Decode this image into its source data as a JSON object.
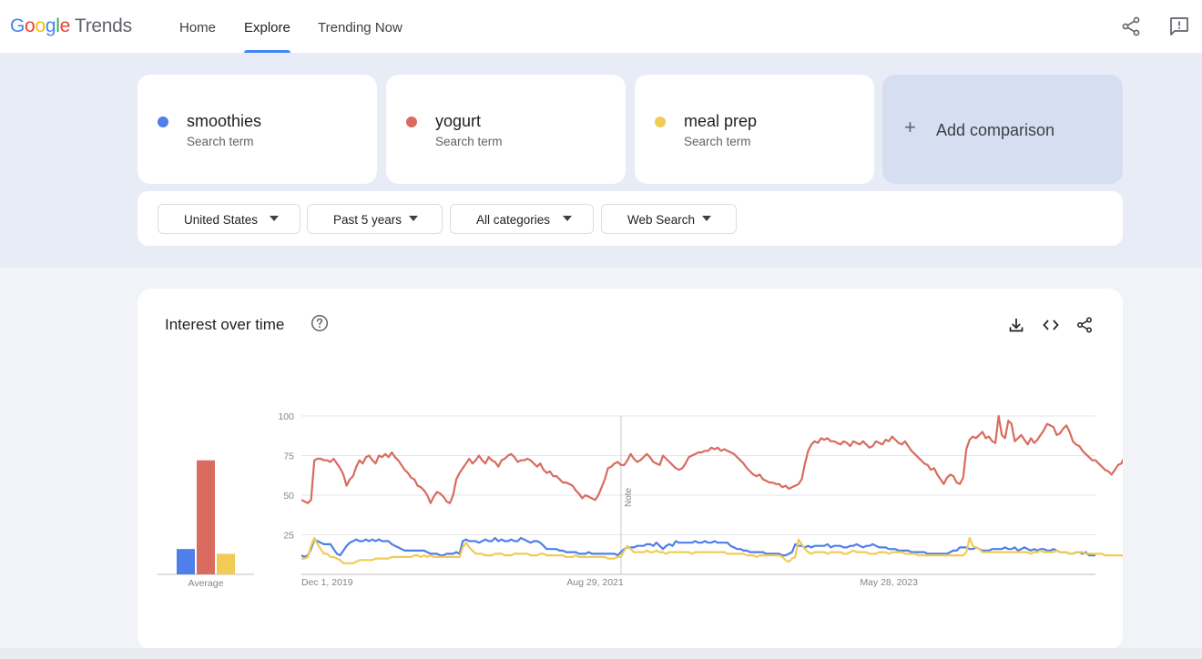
{
  "header": {
    "logo_parts": [
      "G",
      "o",
      "o",
      "g",
      "l",
      "e"
    ],
    "logo_suffix": "Trends",
    "nav": [
      {
        "label": "Home"
      },
      {
        "label": "Explore"
      },
      {
        "label": "Trending Now"
      }
    ],
    "icons": [
      "share-icon",
      "feedback-icon"
    ]
  },
  "terms": [
    {
      "name": "smoothies",
      "sub": "Search term",
      "color": "#4f7fe8"
    },
    {
      "name": "yogurt",
      "sub": "Search term",
      "color": "#d96b5f"
    },
    {
      "name": "meal prep",
      "sub": "Search term",
      "color": "#f0cc55"
    }
  ],
  "add_comparison": {
    "label": "Add comparison",
    "icon": "plus-icon"
  },
  "filters": [
    {
      "label": "United States"
    },
    {
      "label": "Past 5 years"
    },
    {
      "label": "All categories"
    },
    {
      "label": "Web Search"
    }
  ],
  "card": {
    "title": "Interest over time",
    "icons": [
      "help-icon",
      "download-icon",
      "embed-icon",
      "share-icon"
    ]
  },
  "chart_data": {
    "type": "line",
    "y_ticks": [
      100,
      75,
      50,
      25
    ],
    "ylim": [
      0,
      100
    ],
    "x_tick_labels": [
      "Dec 1, 2019",
      "Aug 29, 2021",
      "May 28, 2023"
    ],
    "x_tick_positions": [
      0,
      91,
      182
    ],
    "note_label": "Note",
    "note_index": 99,
    "average_label": "Average",
    "averages": [
      {
        "name": "smoothies",
        "value": 16,
        "color": "#4f7fe8"
      },
      {
        "name": "yogurt",
        "value": 72,
        "color": "#d96b5f"
      },
      {
        "name": "meal prep",
        "value": 13,
        "color": "#f0cc55"
      }
    ],
    "series": [
      {
        "name": "smoothies",
        "color": "#4f7fe8",
        "values": [
          12,
          11,
          12,
          16,
          22,
          21,
          20,
          19,
          19,
          19,
          16,
          13,
          12,
          15,
          18,
          20,
          21,
          22,
          21,
          21,
          22,
          21,
          22,
          21,
          22,
          21,
          21,
          21,
          19,
          18,
          17,
          16,
          15,
          15,
          15,
          15,
          15,
          15,
          15,
          14,
          13,
          13,
          13,
          12,
          12,
          13,
          13,
          13,
          14,
          13,
          21,
          22,
          21,
          21,
          21,
          20,
          21,
          22,
          21,
          21,
          23,
          21,
          22,
          21,
          21,
          22,
          21,
          21,
          23,
          22,
          21,
          20,
          21,
          21,
          20,
          18,
          16,
          16,
          16,
          16,
          15,
          15,
          14,
          14,
          14,
          14,
          13,
          13,
          13,
          14,
          13,
          13,
          13,
          13,
          13,
          13,
          13,
          13,
          12,
          14,
          16,
          17,
          17,
          17,
          18,
          18,
          18,
          19,
          19,
          18,
          20,
          18,
          16,
          18,
          19,
          18,
          21,
          20,
          20,
          20,
          20,
          20,
          21,
          20,
          20,
          21,
          20,
          20,
          21,
          20,
          20,
          20,
          20,
          18,
          17,
          16,
          16,
          15,
          15,
          14,
          14,
          14,
          14,
          14,
          13,
          13,
          13,
          13,
          13,
          12,
          12,
          13,
          14,
          19,
          18,
          18,
          17,
          18,
          17,
          18,
          18,
          18,
          18,
          19,
          17,
          18,
          18,
          18,
          17,
          17,
          18,
          18,
          19,
          18,
          17,
          18,
          18,
          19,
          18,
          17,
          17,
          17,
          16,
          16,
          16,
          15,
          15,
          15,
          15,
          14,
          14,
          14,
          14,
          14,
          13,
          13,
          13,
          13,
          13,
          13,
          13,
          14,
          15,
          15,
          17,
          17,
          17,
          16,
          16,
          17,
          16,
          15,
          15,
          15,
          16,
          16,
          16,
          16,
          17,
          16,
          16,
          17,
          15,
          16,
          17,
          16,
          15,
          16,
          15,
          16,
          16,
          15,
          15,
          16,
          15,
          14,
          14,
          14,
          13,
          13,
          14,
          14,
          13,
          14,
          12,
          12,
          12
        ]
      },
      {
        "name": "yogurt",
        "color": "#d96b5f",
        "values": [
          47,
          46,
          45,
          47,
          72,
          73,
          73,
          72,
          72,
          71,
          73,
          70,
          67,
          63,
          56,
          60,
          62,
          68,
          72,
          70,
          74,
          75,
          72,
          70,
          75,
          74,
          76,
          74,
          77,
          74,
          72,
          69,
          66,
          64,
          61,
          60,
          56,
          55,
          53,
          50,
          45,
          49,
          52,
          51,
          49,
          46,
          45,
          50,
          60,
          64,
          67,
          70,
          73,
          70,
          72,
          75,
          72,
          70,
          74,
          72,
          71,
          68,
          72,
          73,
          75,
          76,
          74,
          71,
          72,
          72,
          73,
          72,
          70,
          68,
          70,
          66,
          64,
          65,
          62,
          62,
          60,
          58,
          58,
          57,
          56,
          53,
          51,
          48,
          50,
          49,
          48,
          47,
          50,
          55,
          60,
          67,
          68,
          70,
          71,
          69,
          69,
          72,
          76,
          73,
          71,
          72,
          74,
          76,
          74,
          71,
          70,
          69,
          75,
          73,
          71,
          69,
          67,
          66,
          67,
          70,
          74,
          75,
          76,
          77,
          77,
          78,
          78,
          80,
          79,
          80,
          78,
          79,
          78,
          77,
          76,
          74,
          72,
          70,
          67,
          65,
          63,
          62,
          63,
          60,
          59,
          58,
          58,
          57,
          57,
          55,
          56,
          54,
          55,
          56,
          57,
          60,
          70,
          78,
          82,
          84,
          83,
          86,
          85,
          86,
          84,
          84,
          83,
          82,
          84,
          83,
          81,
          84,
          83,
          82,
          84,
          82,
          80,
          81,
          84,
          83,
          82,
          85,
          84,
          87,
          85,
          83,
          82,
          84,
          81,
          78,
          76,
          74,
          72,
          70,
          69,
          66,
          67,
          63,
          60,
          57,
          61,
          63,
          62,
          58,
          57,
          61,
          79,
          85,
          87,
          86,
          88,
          90,
          86,
          87,
          84,
          83,
          100,
          88,
          86,
          97,
          95,
          84,
          86,
          88,
          85,
          82,
          86,
          83,
          85,
          88,
          91,
          95,
          94,
          93,
          88,
          89,
          92,
          94,
          90,
          84,
          82,
          81,
          78,
          76,
          74,
          72,
          72,
          70,
          68,
          66,
          65,
          63,
          66,
          69,
          70,
          74,
          62,
          67
        ]
      },
      {
        "name": "meal prep",
        "color": "#f0cc55",
        "values": [
          10,
          10,
          11,
          18,
          23,
          19,
          16,
          13,
          13,
          11,
          11,
          10,
          9,
          7,
          7,
          7,
          7,
          8,
          9,
          9,
          9,
          9,
          9,
          10,
          10,
          10,
          10,
          10,
          11,
          11,
          11,
          11,
          11,
          11,
          11,
          12,
          12,
          11,
          12,
          11,
          12,
          11,
          11,
          11,
          11,
          11,
          11,
          11,
          11,
          11,
          17,
          20,
          17,
          15,
          13,
          13,
          13,
          12,
          12,
          12,
          13,
          13,
          13,
          12,
          12,
          12,
          13,
          13,
          13,
          13,
          13,
          12,
          12,
          12,
          13,
          13,
          12,
          12,
          12,
          12,
          12,
          12,
          11,
          11,
          11,
          12,
          11,
          11,
          11,
          11,
          11,
          11,
          11,
          11,
          11,
          10,
          10,
          10,
          11,
          11,
          15,
          18,
          16,
          14,
          14,
          14,
          14,
          15,
          14,
          14,
          15,
          14,
          14,
          13,
          14,
          14,
          14,
          14,
          14,
          14,
          14,
          13,
          14,
          14,
          14,
          14,
          14,
          14,
          14,
          14,
          14,
          14,
          13,
          13,
          13,
          13,
          13,
          13,
          12,
          12,
          12,
          11,
          12,
          12,
          12,
          12,
          12,
          12,
          12,
          11,
          9,
          8,
          10,
          11,
          22,
          19,
          16,
          14,
          13,
          14,
          14,
          14,
          14,
          13,
          14,
          14,
          14,
          14,
          13,
          13,
          14,
          15,
          14,
          14,
          14,
          14,
          13,
          13,
          13,
          14,
          14,
          14,
          13,
          14,
          14,
          14,
          14,
          13,
          13,
          13,
          13,
          12,
          12,
          12,
          12,
          12,
          12,
          12,
          12,
          12,
          12,
          12,
          12,
          12,
          12,
          12,
          14,
          23,
          18,
          17,
          16,
          14,
          14,
          14,
          14,
          14,
          14,
          14,
          14,
          14,
          14,
          14,
          14,
          14,
          14,
          14,
          13,
          14,
          14,
          15,
          14,
          14,
          14,
          14,
          15,
          14,
          14,
          14,
          13,
          13,
          14,
          14,
          14,
          13,
          13,
          13,
          13,
          13,
          13,
          12,
          12,
          12,
          12,
          12,
          12,
          11,
          11
        ]
      }
    ]
  }
}
